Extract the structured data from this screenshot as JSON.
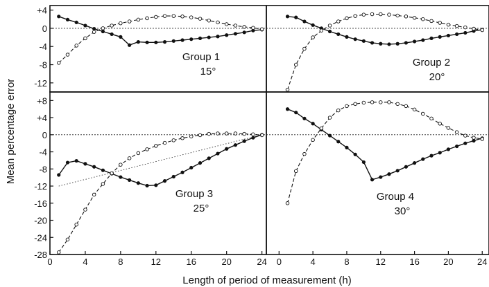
{
  "chart_data": {
    "type": "line",
    "xlabel": "Length of period of measurement (h)",
    "ylabel": "Mean percentage error",
    "x_ticks": [
      "0",
      "4",
      "8",
      "12",
      "16",
      "20",
      "24"
    ],
    "panels": [
      {
        "group_label": "Group 1",
        "temp_label": "15°",
        "ylim": [
          -14,
          5
        ],
        "y_ticks": [
          "+4",
          "0",
          "-4",
          "-8",
          "-12"
        ],
        "series": [
          {
            "style": "solid-filled",
            "x": [
              1,
              2,
              3,
              4,
              5,
              6,
              7,
              8,
              9,
              10,
              11,
              12,
              13,
              14,
              15,
              16,
              17,
              18,
              19,
              20,
              21,
              22,
              23,
              24
            ],
            "y": [
              2.6,
              1.9,
              1.3,
              0.6,
              -0.1,
              -0.7,
              -1.3,
              -1.9,
              -3.7,
              -3.0,
              -3.1,
              -3.1,
              -3.0,
              -2.8,
              -2.6,
              -2.4,
              -2.2,
              -2.0,
              -1.8,
              -1.5,
              -1.2,
              -0.9,
              -0.5,
              -0.3
            ]
          },
          {
            "style": "dashed-open",
            "x": [
              1,
              2,
              3,
              4,
              5,
              6,
              7,
              8,
              9,
              10,
              11,
              12,
              13,
              14,
              15,
              16,
              17,
              18,
              19,
              20,
              21,
              22,
              23,
              24
            ],
            "y": [
              -7.6,
              -5.8,
              -3.8,
              -2.2,
              -0.8,
              0.0,
              0.6,
              1.1,
              1.5,
              1.9,
              2.2,
              2.5,
              2.7,
              2.7,
              2.6,
              2.4,
              2.1,
              1.7,
              1.3,
              0.9,
              0.6,
              0.3,
              0.1,
              -0.2
            ]
          }
        ]
      },
      {
        "group_label": "Group 2",
        "temp_label": "20°",
        "ylim": [
          -14,
          5
        ],
        "y_ticks": [],
        "series": [
          {
            "style": "solid-filled",
            "x": [
              1,
              2,
              3,
              4,
              5,
              6,
              7,
              8,
              9,
              10,
              11,
              12,
              13,
              14,
              15,
              16,
              17,
              18,
              19,
              20,
              21,
              22,
              23,
              24
            ],
            "y": [
              2.6,
              2.4,
              1.5,
              0.7,
              0.0,
              -0.7,
              -1.3,
              -1.9,
              -2.4,
              -2.8,
              -3.2,
              -3.4,
              -3.5,
              -3.4,
              -3.2,
              -2.9,
              -2.6,
              -2.2,
              -1.9,
              -1.6,
              -1.3,
              -1.0,
              -0.6,
              -0.3
            ]
          },
          {
            "style": "dashed-open",
            "x": [
              1,
              2,
              3,
              4,
              5,
              6,
              7,
              8,
              9,
              10,
              11,
              12,
              13,
              14,
              15,
              16,
              17,
              18,
              19,
              20,
              21,
              22,
              23,
              24
            ],
            "y": [
              -13.5,
              -8.0,
              -4.5,
              -2.0,
              -0.5,
              0.6,
              1.5,
              2.2,
              2.7,
              3.0,
              3.1,
              3.1,
              3.0,
              2.8,
              2.6,
              2.3,
              2.0,
              1.6,
              1.2,
              0.8,
              0.5,
              0.2,
              -0.1,
              -0.4
            ]
          }
        ]
      },
      {
        "group_label": "Group 3",
        "temp_label": "25°",
        "ylim": [
          -28,
          10
        ],
        "y_ticks": [
          "+8",
          "+4",
          "0",
          "-4",
          "-8",
          "-12",
          "-16",
          "-20",
          "-24",
          "-28"
        ],
        "series": [
          {
            "style": "solid-filled",
            "x": [
              1,
              2,
              3,
              4,
              5,
              6,
              7,
              8,
              9,
              10,
              11,
              12,
              13,
              14,
              15,
              16,
              17,
              18,
              19,
              20,
              21,
              22,
              23,
              24
            ],
            "y": [
              -9.4,
              -6.5,
              -6.1,
              -6.8,
              -7.5,
              -8.3,
              -9.1,
              -9.9,
              -10.6,
              -11.3,
              -11.9,
              -11.8,
              -10.8,
              -9.8,
              -8.8,
              -7.7,
              -6.6,
              -5.5,
              -4.4,
              -3.3,
              -2.4,
              -1.5,
              -0.7,
              0.0
            ]
          },
          {
            "style": "dashed-open",
            "x": [
              1,
              2,
              3,
              4,
              5,
              6,
              7,
              8,
              9,
              10,
              11,
              12,
              13,
              14,
              15,
              16,
              17,
              18,
              19,
              20,
              21,
              22,
              23,
              24
            ],
            "y": [
              -27.5,
              -24.5,
              -21.0,
              -17.5,
              -14.0,
              -11.5,
              -9.0,
              -7.0,
              -5.5,
              -4.3,
              -3.4,
              -2.6,
              -1.9,
              -1.3,
              -0.8,
              -0.4,
              -0.1,
              0.2,
              0.3,
              0.3,
              0.3,
              0.2,
              0.1,
              -0.1
            ]
          },
          {
            "style": "dotted",
            "x": [
              1,
              24
            ],
            "y": [
              -12.0,
              0.0
            ]
          }
        ]
      },
      {
        "group_label": "Group 4",
        "temp_label": "30°",
        "ylim": [
          -28,
          10
        ],
        "y_ticks": [],
        "series": [
          {
            "style": "solid-filled",
            "x": [
              1,
              2,
              3,
              4,
              5,
              6,
              7,
              8,
              9,
              10,
              11,
              12,
              13,
              14,
              15,
              16,
              17,
              18,
              19,
              20,
              21,
              22,
              23,
              24
            ],
            "y": [
              6.0,
              5.2,
              3.8,
              2.6,
              1.2,
              -0.2,
              -1.6,
              -3.0,
              -4.6,
              -6.4,
              -10.5,
              -9.9,
              -9.2,
              -8.4,
              -7.5,
              -6.6,
              -5.7,
              -4.9,
              -4.2,
              -3.4,
              -2.7,
              -2.0,
              -1.4,
              -0.8
            ]
          },
          {
            "style": "dashed-open",
            "x": [
              1,
              2,
              3,
              4,
              5,
              6,
              7,
              8,
              9,
              10,
              11,
              12,
              13,
              14,
              15,
              16,
              17,
              18,
              19,
              20,
              21,
              22,
              23,
              24
            ],
            "y": [
              -16.0,
              -8.5,
              -4.5,
              -1.2,
              1.5,
              4.0,
              5.7,
              6.7,
              7.2,
              7.5,
              7.6,
              7.6,
              7.6,
              7.2,
              6.7,
              5.9,
              4.9,
              3.8,
              2.6,
              1.6,
              0.6,
              -0.2,
              -0.7,
              -1.0
            ]
          }
        ]
      }
    ]
  }
}
